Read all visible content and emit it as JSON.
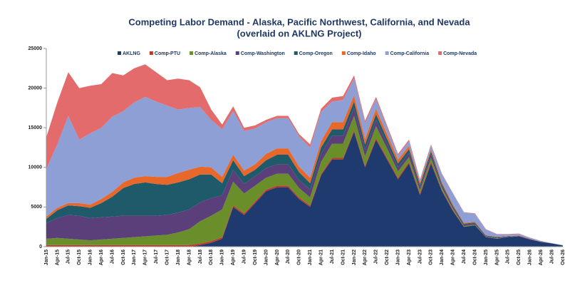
{
  "chart_data": {
    "type": "stacked_area",
    "title": "Competing Labor Demand - Alaska, Pacific Northwest, California,  and Nevada",
    "subtitle": "(overlaid on AKLNG Project)",
    "categories": [
      "Jan-15",
      "Apr-15",
      "Jul-15",
      "Oct-15",
      "Jan-16",
      "Apr-16",
      "Jul-16",
      "Oct-16",
      "Jan-17",
      "Apr-17",
      "Jul-17",
      "Oct-17",
      "Jan-18",
      "Apr-18",
      "Jul-18",
      "Oct-18",
      "Jan-19",
      "Apr-19",
      "Jul-19",
      "Oct-19",
      "Jan-20",
      "Apr-20",
      "Jul-20",
      "Oct-20",
      "Jan-21",
      "Apr-21",
      "Jul-21",
      "Oct-21",
      "Jan-22",
      "Apr-22",
      "Jul-22",
      "Oct-22",
      "Jan-23",
      "Apr-23",
      "Jul-23",
      "Oct-23",
      "Jan-24",
      "Apr-24",
      "Jul-24",
      "Oct-24",
      "Jan-25",
      "Apr-25",
      "Jul-25",
      "Oct-25",
      "Jan-26",
      "Apr-26",
      "Jul-26",
      "Oct-26"
    ],
    "series": [
      {
        "name": "AKLNG",
        "color": "#1f3a6e",
        "values": [
          0,
          0,
          0,
          0,
          0,
          0,
          0,
          0,
          0,
          0,
          0,
          0,
          0,
          0,
          200,
          500,
          1000,
          5000,
          4000,
          5500,
          7000,
          7500,
          7500,
          6000,
          5000,
          9000,
          11000,
          11000,
          14500,
          10000,
          13500,
          11000,
          8500,
          10500,
          6500,
          10500,
          7000,
          4500,
          2500,
          2700,
          1200,
          1000,
          1200,
          1300,
          900,
          600,
          400,
          150
        ]
      },
      {
        "name": "Comp-PTU",
        "color": "#c0392b",
        "values": [
          200,
          200,
          200,
          200,
          200,
          200,
          200,
          200,
          200,
          200,
          200,
          200,
          200,
          200,
          200,
          200,
          200,
          200,
          200,
          200,
          200,
          200,
          200,
          200,
          200,
          200,
          200,
          200,
          200,
          200,
          200,
          200,
          200,
          200,
          200,
          200,
          100,
          100,
          0,
          0,
          0,
          0,
          0,
          0,
          0,
          0,
          0,
          0
        ]
      },
      {
        "name": "Comp-Alaska",
        "color": "#6a8f2a",
        "values": [
          800,
          900,
          800,
          700,
          600,
          700,
          800,
          900,
          1000,
          1100,
          1200,
          1300,
          1600,
          2000,
          2800,
          3200,
          3500,
          3000,
          2500,
          2000,
          1500,
          1500,
          1500,
          1200,
          1000,
          1500,
          1800,
          1800,
          1800,
          1200,
          1500,
          1200,
          800,
          600,
          400,
          500,
          300,
          200,
          100,
          100,
          50,
          50,
          0,
          0,
          0,
          0,
          0,
          0
        ]
      },
      {
        "name": "Comp-Washington",
        "color": "#5b3f7a",
        "values": [
          2000,
          2500,
          3000,
          3000,
          2800,
          2800,
          2800,
          2800,
          2700,
          2600,
          2500,
          2500,
          2500,
          2500,
          2400,
          2200,
          1800,
          1500,
          1200,
          1200,
          1200,
          1200,
          1200,
          1000,
          1000,
          1000,
          1000,
          1000,
          1000,
          800,
          800,
          600,
          500,
          500,
          400,
          400,
          300,
          200,
          200,
          150,
          100,
          100,
          50,
          50,
          50,
          20,
          0,
          0
        ]
      },
      {
        "name": "Comp-Oregon",
        "color": "#1e5a6a",
        "values": [
          500,
          1000,
          1200,
          1200,
          1300,
          1800,
          2500,
          3500,
          4000,
          4200,
          4000,
          3800,
          3800,
          3800,
          3500,
          3000,
          1500,
          1200,
          1000,
          800,
          1000,
          1200,
          1200,
          1000,
          800,
          800,
          800,
          800,
          800,
          700,
          700,
          600,
          500,
          500,
          300,
          400,
          200,
          150,
          100,
          100,
          50,
          50,
          50,
          0,
          0,
          0,
          0,
          0
        ]
      },
      {
        "name": "Comp-Idaho",
        "color": "#e8672a",
        "values": [
          300,
          300,
          300,
          400,
          400,
          500,
          600,
          700,
          800,
          800,
          900,
          1000,
          1200,
          1200,
          1000,
          900,
          800,
          700,
          700,
          700,
          800,
          800,
          800,
          700,
          700,
          800,
          900,
          900,
          800,
          700,
          700,
          600,
          500,
          400,
          300,
          300,
          200,
          150,
          100,
          100,
          50,
          50,
          50,
          50,
          50,
          30,
          20,
          0
        ]
      },
      {
        "name": "Comp-California",
        "color": "#8d9fd4",
        "values": [
          6000,
          8000,
          11000,
          8000,
          9000,
          9000,
          9500,
          9000,
          9500,
          10000,
          9500,
          9000,
          8000,
          7800,
          7500,
          6000,
          6000,
          5500,
          5000,
          4500,
          4000,
          3800,
          3800,
          3800,
          3800,
          3700,
          2600,
          2800,
          2100,
          2000,
          1200,
          800,
          500,
          600,
          300,
          500,
          1000,
          1400,
          1300,
          1000,
          700,
          300,
          200,
          200,
          150,
          80,
          30,
          50
        ]
      },
      {
        "name": "Comp-Nevada",
        "color": "#e36b6b",
        "values": [
          4000,
          5300,
          5500,
          6500,
          6000,
          5500,
          5500,
          4500,
          4300,
          4100,
          3700,
          3200,
          3900,
          3500,
          2500,
          1300,
          600,
          600,
          400,
          400,
          300,
          300,
          300,
          300,
          400,
          400,
          500,
          500,
          400,
          300,
          300,
          300,
          200,
          200,
          100,
          100,
          100,
          50,
          50,
          50,
          50,
          50,
          50,
          50,
          0,
          0,
          0,
          0
        ]
      }
    ],
    "ylim": [
      0,
      25000
    ],
    "yticks": [
      0,
      5000,
      10000,
      15000,
      20000,
      25000
    ],
    "legend": "top"
  }
}
